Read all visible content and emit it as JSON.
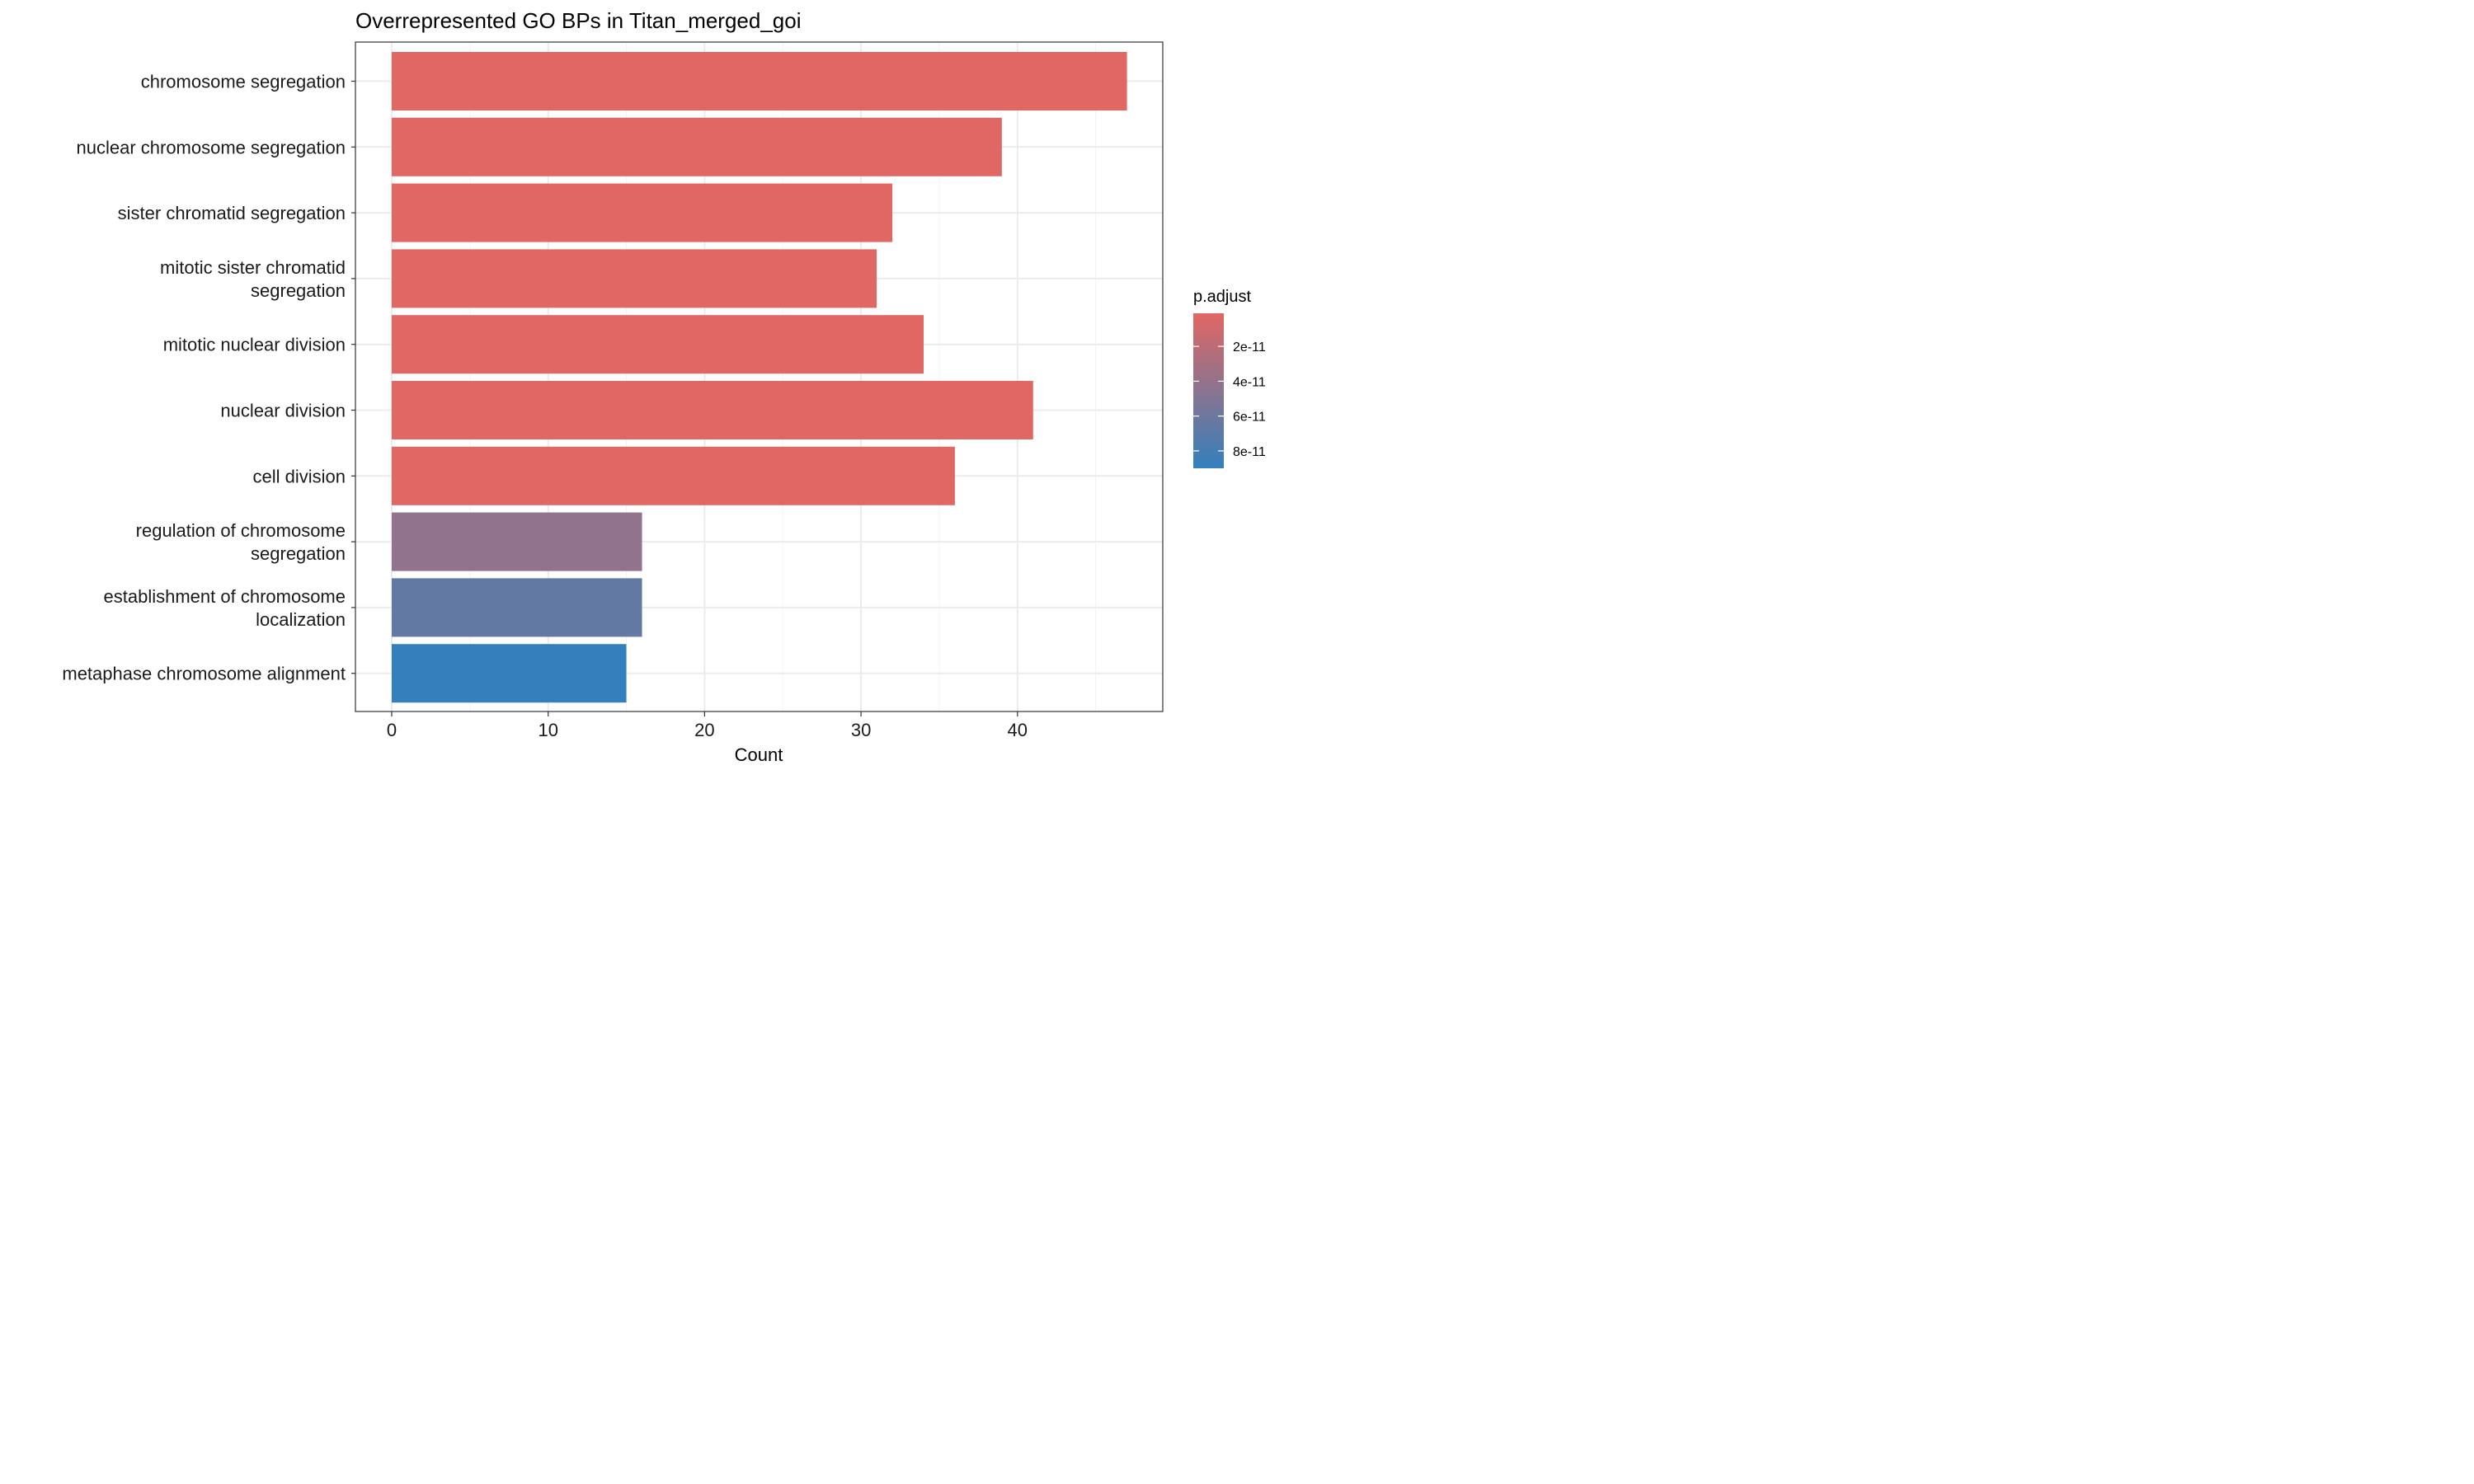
{
  "chart_data": {
    "type": "bar",
    "orientation": "horizontal",
    "title": "Overrepresented GO BPs in Titan_merged_goi",
    "xlabel": "Count",
    "ylabel": "",
    "xlim": [
      0,
      49
    ],
    "xticks": [
      0,
      10,
      20,
      30,
      40
    ],
    "grid": true,
    "categories": [
      [
        "chromosome segregation"
      ],
      [
        "nuclear chromosome segregation"
      ],
      [
        "sister chromatid segregation"
      ],
      [
        "mitotic sister chromatid",
        "segregation"
      ],
      [
        "mitotic nuclear division"
      ],
      [
        "nuclear division"
      ],
      [
        "cell division"
      ],
      [
        "regulation of chromosome",
        "segregation"
      ],
      [
        "establishment of chromosome",
        "localization"
      ],
      [
        "metaphase chromosome alignment"
      ]
    ],
    "values": [
      47,
      39,
      32,
      31,
      34,
      41,
      36,
      16,
      16,
      15
    ],
    "p_adjust": [
      1e-12,
      1e-12,
      1e-12,
      1e-12,
      1e-12,
      1e-12,
      1e-12,
      4.2e-11,
      6.6e-11,
      9e-11
    ],
    "legend": {
      "title": "p.adjust",
      "placement": "right",
      "range": [
        1e-12,
        9e-11
      ],
      "ticks": [
        {
          "value": 2e-11,
          "label": "2e-11"
        },
        {
          "value": 4e-11,
          "label": "4e-11"
        },
        {
          "value": 6e-11,
          "label": "6e-11"
        },
        {
          "value": 8e-11,
          "label": "8e-11"
        }
      ],
      "color_low": "#e16764",
      "color_high": "#3380bc"
    }
  }
}
